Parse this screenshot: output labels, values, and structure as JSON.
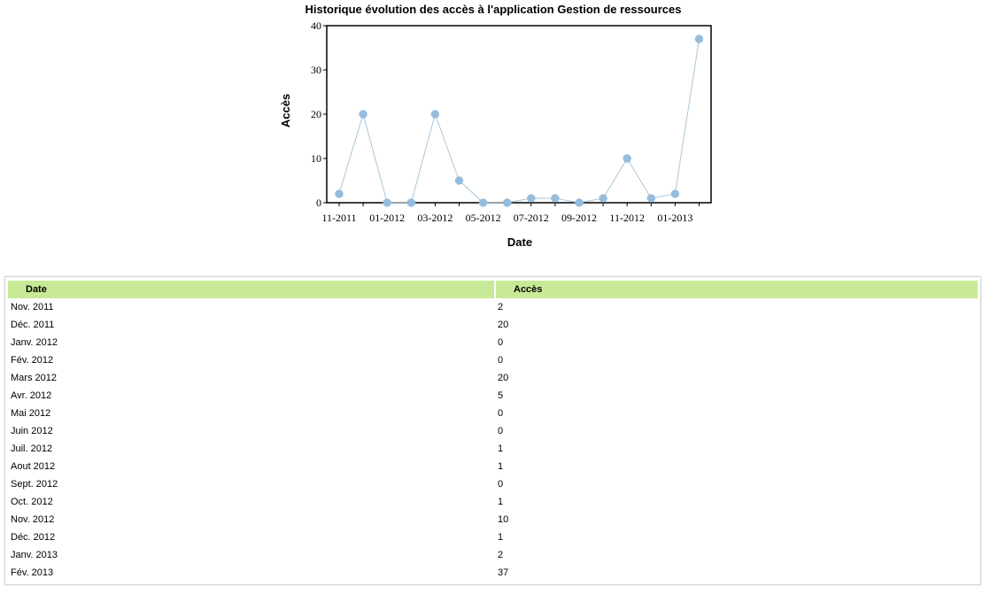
{
  "chart_data": {
    "type": "line",
    "title": "Historique évolution des accès à l'application Gestion de ressources",
    "xlabel": "Date",
    "ylabel": "Accès",
    "x": [
      "11-2011",
      "12-2011",
      "01-2012",
      "02-2012",
      "03-2012",
      "04-2012",
      "05-2012",
      "06-2012",
      "07-2012",
      "08-2012",
      "09-2012",
      "10-2012",
      "11-2012",
      "12-2012",
      "01-2013",
      "02-2013"
    ],
    "x_tick_labels": [
      "11-2011",
      "01-2012",
      "03-2012",
      "05-2012",
      "07-2012",
      "09-2012",
      "11-2012",
      "01-2013"
    ],
    "series": [
      {
        "values": [
          2,
          20,
          0,
          0,
          20,
          5,
          0,
          0,
          1,
          1,
          0,
          1,
          10,
          1,
          2,
          37
        ]
      }
    ],
    "y_ticks": [
      0,
      10,
      20,
      30,
      40
    ],
    "ylim": [
      0,
      40
    ],
    "grid": false,
    "legend": "none",
    "colors": {
      "line": "#a9c6da",
      "marker": "#95bcdc"
    }
  },
  "table": {
    "headers": {
      "date": "Date",
      "acces": "Accès"
    },
    "header_color": "#c8ea97",
    "rows": [
      {
        "date": "Nov. 2011",
        "acces": "2"
      },
      {
        "date": "Déc. 2011",
        "acces": "20"
      },
      {
        "date": "Janv. 2012",
        "acces": "0"
      },
      {
        "date": "Fév. 2012",
        "acces": "0"
      },
      {
        "date": "Mars 2012",
        "acces": "20"
      },
      {
        "date": "Avr. 2012",
        "acces": "5"
      },
      {
        "date": "Mai 2012",
        "acces": "0"
      },
      {
        "date": "Juin 2012",
        "acces": "0"
      },
      {
        "date": "Juil. 2012",
        "acces": "1"
      },
      {
        "date": "Aout 2012",
        "acces": "1"
      },
      {
        "date": "Sept. 2012",
        "acces": "0"
      },
      {
        "date": "Oct. 2012",
        "acces": "1"
      },
      {
        "date": "Nov. 2012",
        "acces": "10"
      },
      {
        "date": "Déc. 2012",
        "acces": "1"
      },
      {
        "date": "Janv. 2013",
        "acces": "2"
      },
      {
        "date": "Fév. 2013",
        "acces": "37"
      }
    ]
  }
}
